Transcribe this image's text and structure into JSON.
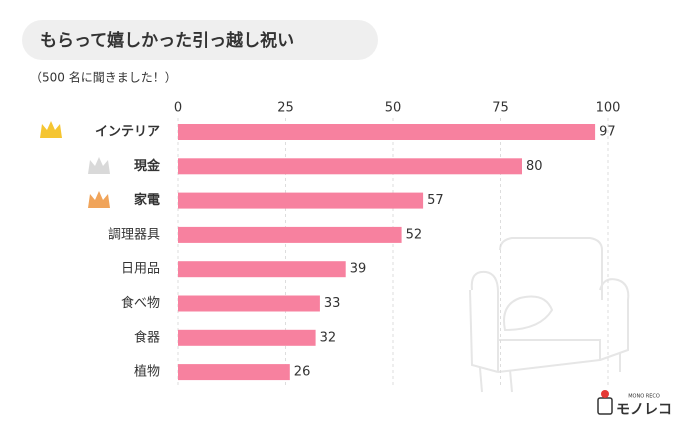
{
  "chart_data": {
    "type": "bar",
    "orientation": "horizontal",
    "title": "もらって嬉しかった引っ越し祝い",
    "subtitle": "（500 名に聞きました！）",
    "categories": [
      "インテリア",
      "現金",
      "家電",
      "調理器具",
      "日用品",
      "食べ物",
      "食器",
      "植物"
    ],
    "values": [
      97,
      80,
      57,
      52,
      39,
      33,
      32,
      26
    ],
    "color": "#f7819f",
    "xlim": [
      0,
      100
    ],
    "xticks": [
      0,
      25,
      50,
      75,
      100
    ],
    "grid": true
  },
  "brand": {
    "name": "モノレコ",
    "sub": "MONO RECO"
  }
}
